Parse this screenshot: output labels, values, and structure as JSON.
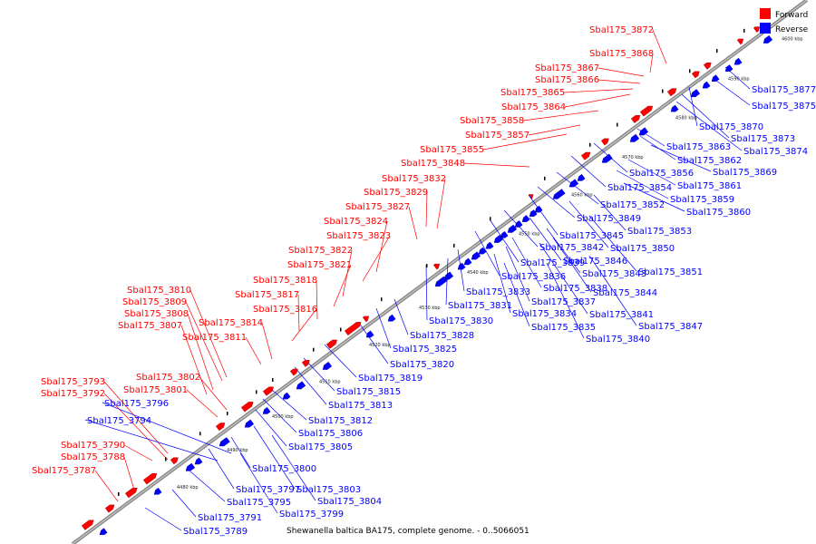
{
  "caption": "Shewanella baltica BA175, complete genome. - 0..5066051",
  "legend": [
    {
      "label": "Forward",
      "color": "#ff0000"
    },
    {
      "label": "Reverse",
      "color": "#0000ff"
    }
  ],
  "colors": {
    "forward": "#ff0000",
    "reverse": "#0000ff",
    "backbone": "#808080"
  },
  "ticks": [
    "4480 kbp",
    "4490 kbp",
    "4500 kbp",
    "4510 kbp",
    "4520 kbp",
    "4530 kbp",
    "4540 kbp",
    "4550 kbp",
    "4560 kbp",
    "4570 kbp",
    "4580 kbp",
    "4590 kbp",
    "4600 kbp"
  ],
  "forward_labels": [
    "Sbal175_3872",
    "Sbal175_3868",
    "Sbal175_3867",
    "Sbal175_3866",
    "Sbal175_3865",
    "Sbal175_3864",
    "Sbal175_3858",
    "Sbal175_3857",
    "Sbal175_3855",
    "Sbal175_3848",
    "Sbal175_3832",
    "Sbal175_3829",
    "Sbal175_3827",
    "Sbal175_3824",
    "Sbal175_3823",
    "Sbal175_3822",
    "Sbal175_3821",
    "Sbal175_3818",
    "Sbal175_3817",
    "Sbal175_3816",
    "Sbal175_3810",
    "Sbal175_3809",
    "Sbal175_3808",
    "Sbal175_3807",
    "Sbal175_3814",
    "Sbal175_3811",
    "Sbal175_3802",
    "Sbal175_3801",
    "Sbal175_3793",
    "Sbal175_3792",
    "Sbal175_3790",
    "Sbal175_3788",
    "Sbal175_3787"
  ],
  "reverse_labels": [
    "Sbal175_3877",
    "Sbal175_3875",
    "Sbal175_3870",
    "Sbal175_3873",
    "Sbal175_3874",
    "Sbal175_3863",
    "Sbal175_3862",
    "Sbal175_3869",
    "Sbal175_3856",
    "Sbal175_3861",
    "Sbal175_3854",
    "Sbal175_3859",
    "Sbal175_3852",
    "Sbal175_3860",
    "Sbal175_3849",
    "Sbal175_3853",
    "Sbal175_3845",
    "Sbal175_3842",
    "Sbal175_3850",
    "Sbal175_3846",
    "Sbal175_3839",
    "Sbal175_3843",
    "Sbal175_3851",
    "Sbal175_3836",
    "Sbal175_3838",
    "Sbal175_3833",
    "Sbal175_3844",
    "Sbal175_3837",
    "Sbal175_3831",
    "Sbal175_3841",
    "Sbal175_3834",
    "Sbal175_3830",
    "Sbal175_3835",
    "Sbal175_3847",
    "Sbal175_3828",
    "Sbal175_3840",
    "Sbal175_3825",
    "Sbal175_3820",
    "Sbal175_3819",
    "Sbal175_3815",
    "Sbal175_3813",
    "Sbal175_3796",
    "Sbal175_3794",
    "Sbal175_3812",
    "Sbal175_3806",
    "Sbal175_3805",
    "Sbal175_3800",
    "Sbal175_3797",
    "Sbal175_3803",
    "Sbal175_3795",
    "Sbal175_3804",
    "Sbal175_3799",
    "Sbal175_3791",
    "Sbal175_3789"
  ]
}
